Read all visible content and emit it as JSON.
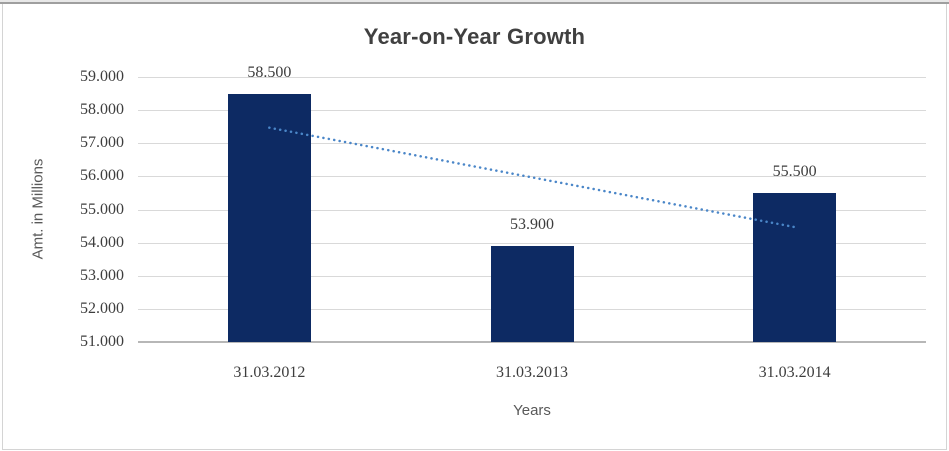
{
  "chart_data": {
    "type": "bar",
    "title": "Year-on-Year Growth",
    "xlabel": "Years",
    "ylabel": "Amt. in Millions",
    "categories": [
      "31.03.2012",
      "31.03.2013",
      "31.03.2014"
    ],
    "values": [
      58.5,
      53.9,
      55.5
    ],
    "data_labels": [
      "58.500",
      "53.900",
      "55.500"
    ],
    "ylim": [
      51.0,
      59.0
    ],
    "ytick_step": 1.0,
    "ytick_labels": [
      "51.000",
      "52.000",
      "53.000",
      "54.000",
      "55.000",
      "56.000",
      "57.000",
      "58.000",
      "59.000"
    ],
    "grid": true,
    "legend": false,
    "trendline": {
      "type": "linear",
      "style": "dotted",
      "start": 57.47,
      "end": 54.47
    },
    "colors": {
      "bar": "#0d2a63",
      "trendline": "#4a86c8",
      "gridline": "#d9d9d9",
      "axis_line": "#b7b7b7",
      "title_text": "#404040",
      "tick_text": "#3d3d3d",
      "axis_title_text": "#595959"
    }
  }
}
